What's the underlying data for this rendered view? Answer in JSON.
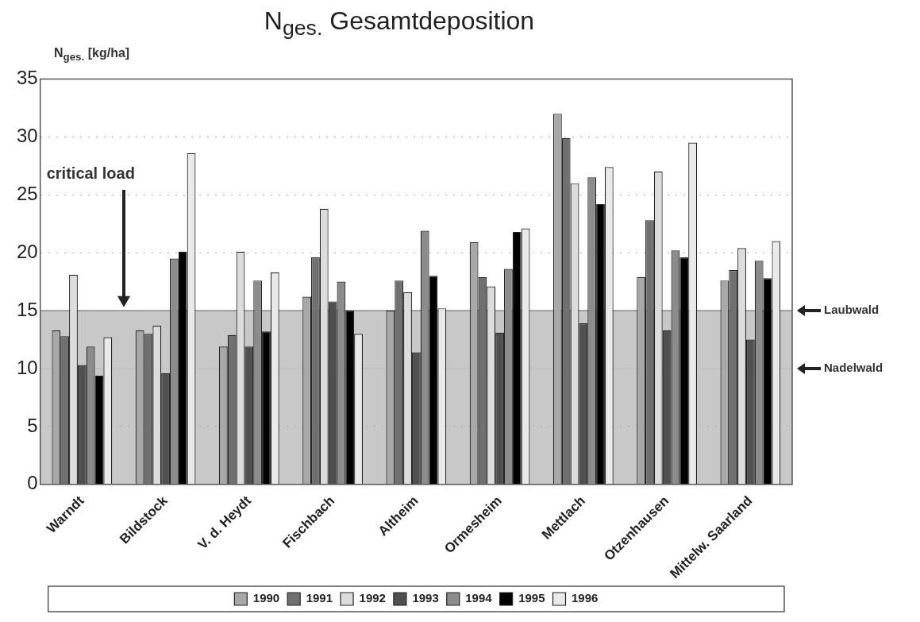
{
  "chart_data": {
    "type": "bar",
    "title": "N$_{ges.}$  Gesamtdeposition",
    "ylabel": "N$_{ges.}$ [kg/ha]",
    "categories": [
      "Warndt",
      "Bildstock",
      "V. d. Heydt",
      "Fischbach",
      "Altheim",
      "Ormesheim",
      "Mettlach",
      "Otzenhausen",
      "Mittelw. Saarland"
    ],
    "series": [
      {
        "name": "1990",
        "color": "#a8a8a8",
        "values": [
          13.3,
          13.3,
          11.9,
          16.2,
          15.0,
          20.9,
          32.0,
          17.9,
          17.6
        ]
      },
      {
        "name": "1991",
        "color": "#707070",
        "values": [
          12.8,
          13.0,
          12.9,
          19.6,
          17.6,
          17.9,
          29.9,
          22.8,
          18.5
        ]
      },
      {
        "name": "1992",
        "color": "#dcdcdc",
        "values": [
          18.1,
          13.7,
          20.1,
          23.8,
          16.6,
          17.1,
          26.0,
          27.0,
          20.4
        ]
      },
      {
        "name": "1993",
        "color": "#505050",
        "values": [
          10.3,
          9.6,
          11.9,
          15.8,
          11.4,
          13.1,
          13.9,
          13.3,
          12.5
        ]
      },
      {
        "name": "1994",
        "color": "#8c8c8c",
        "values": [
          11.9,
          19.5,
          17.6,
          17.5,
          21.9,
          18.6,
          26.5,
          20.2,
          19.3
        ]
      },
      {
        "name": "1995",
        "color": "#000000",
        "values": [
          9.4,
          20.1,
          13.2,
          15.0,
          18.0,
          21.8,
          24.2,
          19.6,
          17.8
        ]
      },
      {
        "name": "1996",
        "color": "#e9e9e9",
        "values": [
          12.7,
          28.6,
          18.3,
          13.0,
          15.2,
          22.1,
          27.4,
          29.5,
          21.0
        ]
      }
    ],
    "ylim": [
      0,
      35
    ],
    "yticks": [
      0,
      5,
      10,
      15,
      20,
      25,
      30,
      35
    ],
    "grid": "y",
    "legend": "bottom",
    "bands": [
      {
        "axis": "y",
        "from": 0,
        "to": 15,
        "color": "#c8c8c8"
      }
    ],
    "ref_lines": [
      {
        "axis": "y",
        "value": 15,
        "label": "Laubwald",
        "color": "#8c8c8c"
      },
      {
        "axis": "y",
        "value": 10,
        "label": "Nadelwald",
        "color": "#c0c0c0"
      }
    ],
    "annotations": [
      "critical load"
    ]
  }
}
